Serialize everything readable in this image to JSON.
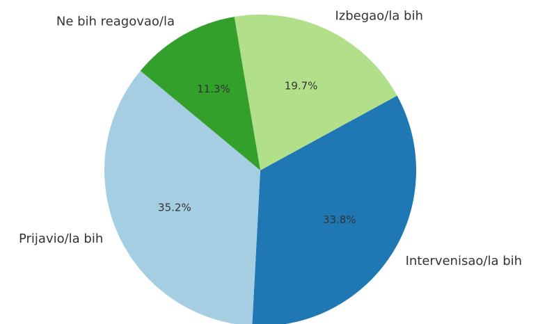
{
  "chart_data": {
    "type": "pie",
    "categories": [
      "Intervenisao/la bih",
      "Izbegao/la bih",
      "Ne bih reagovao/la",
      "Prijavio/la bih"
    ],
    "values": [
      33.8,
      19.7,
      11.3,
      35.2
    ],
    "value_labels": [
      "33.8%",
      "19.7%",
      "11.3%",
      "35.2%"
    ],
    "colors": [
      "#1f78b4",
      "#b2df8a",
      "#33a02c",
      "#a6cee3"
    ]
  }
}
